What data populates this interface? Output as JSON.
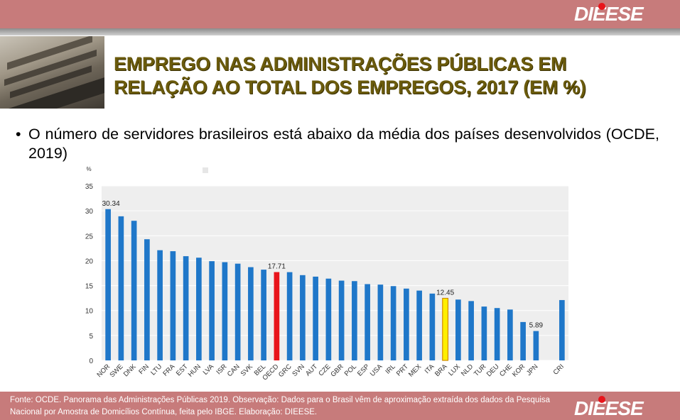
{
  "header": {
    "logo": "DIEESE"
  },
  "title": {
    "line1": "EMPREGO NAS ADMINISTRAÇÕES PÚBLICAS EM",
    "line2": "RELAÇÃO AO TOTAL DOS EMPREGOS, 2017 (EM %)"
  },
  "bullet": {
    "symbol": "•",
    "text": "O número de servidores brasileiros está abaixo da média dos países desenvolvidos (OCDE, 2019)"
  },
  "footer": {
    "text": "Fonte: OCDE. Panorama das Administrações Públicas 2019.  Observação: Dados para o Brasil vêm de aproximação extraída dos dados da Pesquisa Nacional por Amostra de Domicílios Contínua, feita pelo IBGE. Elaboração: DIEESE.",
    "logo": "DIEESE"
  },
  "colors": {
    "bar": "#1f77c9",
    "highlight_oecd": "#e8141b",
    "highlight_bra": "#ffef00",
    "plot_bg": "#eeeeee",
    "title": "#6b5b0c",
    "band": "#c77b7b"
  },
  "chart_data": {
    "type": "bar",
    "ylabel": "%",
    "ylim": [
      0,
      35
    ],
    "yticks": [
      "0",
      "5",
      "10",
      "15",
      "20",
      "25",
      "30",
      "35"
    ],
    "grid": true,
    "categories": [
      "NOR",
      "SWE",
      "DNK",
      "FIN",
      "LTU",
      "FRA",
      "EST",
      "HUN",
      "LVA",
      "ISR",
      "CAN",
      "SVK",
      "BEL",
      "OECD",
      "GRC",
      "SVN",
      "AUT",
      "CZE",
      "GBR",
      "POL",
      "ESP",
      "USA",
      "IRL",
      "PRT",
      "MEX",
      "ITA",
      "BRA",
      "LUX",
      "NLD",
      "TUR",
      "DEU",
      "CHE",
      "KOR",
      "JPN",
      "",
      "CRI"
    ],
    "values": [
      30.34,
      28.9,
      28.0,
      24.3,
      22.1,
      21.9,
      20.9,
      20.6,
      19.9,
      19.7,
      19.4,
      18.7,
      18.2,
      17.71,
      17.7,
      17.1,
      16.8,
      16.4,
      16.0,
      15.9,
      15.3,
      15.2,
      14.9,
      14.4,
      14.0,
      13.4,
      12.45,
      12.2,
      11.9,
      10.8,
      10.5,
      10.2,
      7.7,
      5.89,
      null,
      12.1
    ],
    "highlights": {
      "OECD": "oecd",
      "BRA": "bra"
    },
    "data_labels": [
      {
        "category": "NOR",
        "text": "30.34"
      },
      {
        "category": "OECD",
        "text": "17.71"
      },
      {
        "category": "BRA",
        "text": "12.45"
      },
      {
        "category": "JPN",
        "text": "5.89"
      }
    ]
  }
}
